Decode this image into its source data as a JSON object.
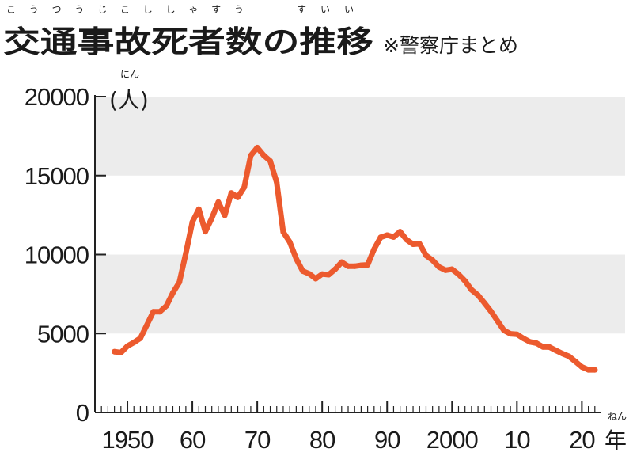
{
  "chart_data": {
    "type": "line",
    "title": "交通事故死者数の推移",
    "title_ruby": [
      {
        "text": "こうつうじこししゃすう",
        "over": "交通事故死者数"
      },
      {
        "text": "すいい",
        "over": "推移"
      }
    ],
    "source": "※警察庁まとめ",
    "ylabel": "(人)",
    "ylabel_ruby": "にん",
    "xlabel": "年",
    "xlabel_ruby": "ねん",
    "ylim": [
      0,
      20000
    ],
    "xlim": [
      1945,
      2023
    ],
    "y_ticks": [
      {
        "value": 0,
        "label": "0"
      },
      {
        "value": 5000,
        "label": "5000"
      },
      {
        "value": 10000,
        "label": "10000"
      },
      {
        "value": 15000,
        "label": "15000"
      },
      {
        "value": 20000,
        "label": "20000"
      }
    ],
    "x_ticks": [
      {
        "value": 1950,
        "label": "1950"
      },
      {
        "value": 1960,
        "label": "60"
      },
      {
        "value": 1970,
        "label": "70"
      },
      {
        "value": 1980,
        "label": "80"
      },
      {
        "value": 1990,
        "label": "90"
      },
      {
        "value": 2000,
        "label": "2000"
      },
      {
        "value": 2010,
        "label": "10"
      },
      {
        "value": 2020,
        "label": "20"
      }
    ],
    "bands": [
      [
        5000,
        10000
      ],
      [
        15000,
        20000
      ]
    ],
    "series": [
      {
        "name": "交通事故死者数",
        "color": "#ec5a2e",
        "x": [
          1948,
          1949,
          1950,
          1951,
          1952,
          1953,
          1954,
          1955,
          1956,
          1957,
          1958,
          1959,
          1960,
          1961,
          1962,
          1963,
          1964,
          1965,
          1966,
          1967,
          1968,
          1969,
          1970,
          1971,
          1972,
          1973,
          1974,
          1975,
          1976,
          1977,
          1978,
          1979,
          1980,
          1981,
          1982,
          1983,
          1984,
          1985,
          1986,
          1987,
          1988,
          1989,
          1990,
          1991,
          1992,
          1993,
          1994,
          1995,
          1996,
          1997,
          1998,
          1999,
          2000,
          2001,
          2002,
          2003,
          2004,
          2005,
          2006,
          2007,
          2008,
          2009,
          2010,
          2011,
          2012,
          2013,
          2014,
          2015,
          2016,
          2017,
          2018,
          2019,
          2020,
          2021,
          2022
        ],
        "values": [
          3850,
          3790,
          4200,
          4430,
          4700,
          5540,
          6380,
          6380,
          6750,
          7580,
          8250,
          10080,
          12060,
          12870,
          11450,
          12300,
          13320,
          12480,
          13900,
          13620,
          14260,
          16260,
          16770,
          16280,
          15920,
          14570,
          11430,
          10790,
          9730,
          8950,
          8780,
          8470,
          8760,
          8720,
          9070,
          9520,
          9260,
          9260,
          9320,
          9350,
          10340,
          11090,
          11230,
          11110,
          11450,
          10940,
          10650,
          10680,
          9940,
          9640,
          9210,
          9010,
          9070,
          8750,
          8330,
          7770,
          7430,
          6930,
          6400,
          5800,
          5200,
          4980,
          4950,
          4690,
          4470,
          4390,
          4150,
          4140,
          3930,
          3730,
          3560,
          3230,
          2880,
          2700,
          2700
        ]
      }
    ]
  }
}
